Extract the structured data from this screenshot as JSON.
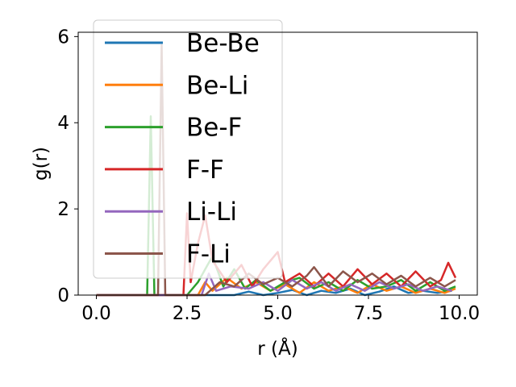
{
  "chart_data": {
    "type": "line",
    "xlabel": "r (Å)",
    "ylabel": "g(r)",
    "xlim": [
      -0.5,
      10.5
    ],
    "ylim": [
      0,
      6.1
    ],
    "xticks": [
      "0.0",
      "2.5",
      "5.0",
      "7.5",
      "10.0"
    ],
    "yticks": [
      "0",
      "2",
      "4",
      "6"
    ],
    "grid": false,
    "legend_position": "top-left",
    "series": [
      {
        "name": "Be-Be",
        "color": "#1f77b4",
        "points": [
          [
            0,
            0
          ],
          [
            3.8,
            0
          ],
          [
            4.2,
            0.08
          ],
          [
            4.6,
            0
          ],
          [
            5.0,
            0.05
          ],
          [
            5.4,
            0.12
          ],
          [
            5.8,
            0
          ],
          [
            6.2,
            0.1
          ],
          [
            6.6,
            0.05
          ],
          [
            7.0,
            0.15
          ],
          [
            7.4,
            0
          ],
          [
            7.8,
            0.08
          ],
          [
            8.2,
            0.2
          ],
          [
            8.6,
            0.05
          ],
          [
            9.0,
            0.1
          ],
          [
            9.4,
            0.05
          ],
          [
            9.8,
            0.1
          ]
        ]
      },
      {
        "name": "Be-Li",
        "color": "#ff7f0e",
        "points": [
          [
            0,
            0
          ],
          [
            2.8,
            0
          ],
          [
            3.0,
            0.3
          ],
          [
            3.2,
            0.1
          ],
          [
            3.6,
            0.4
          ],
          [
            4.0,
            0.15
          ],
          [
            4.4,
            0.3
          ],
          [
            4.8,
            0.1
          ],
          [
            5.2,
            0.25
          ],
          [
            5.6,
            0.05
          ],
          [
            6.0,
            0.3
          ],
          [
            6.4,
            0.1
          ],
          [
            6.8,
            0.2
          ],
          [
            7.2,
            0.05
          ],
          [
            7.6,
            0.25
          ],
          [
            8.0,
            0.1
          ],
          [
            8.4,
            0.2
          ],
          [
            8.8,
            0.05
          ],
          [
            9.2,
            0.15
          ],
          [
            9.6,
            0.05
          ],
          [
            9.9,
            0.15
          ]
        ]
      },
      {
        "name": "Be-F",
        "color": "#2ca02c",
        "points": [
          [
            0,
            0
          ],
          [
            1.4,
            0
          ],
          [
            1.5,
            4.15
          ],
          [
            1.6,
            0
          ],
          [
            2.5,
            0
          ],
          [
            2.8,
            0.3
          ],
          [
            3.2,
            0.9
          ],
          [
            3.5,
            0.2
          ],
          [
            3.8,
            0.6
          ],
          [
            4.1,
            0.15
          ],
          [
            4.4,
            0.35
          ],
          [
            4.8,
            0.1
          ],
          [
            5.2,
            0.3
          ],
          [
            5.6,
            0.4
          ],
          [
            6.0,
            0.15
          ],
          [
            6.4,
            0.3
          ],
          [
            6.8,
            0.1
          ],
          [
            7.2,
            0.35
          ],
          [
            7.6,
            0.15
          ],
          [
            8.0,
            0.2
          ],
          [
            8.4,
            0.35
          ],
          [
            8.8,
            0.1
          ],
          [
            9.2,
            0.3
          ],
          [
            9.6,
            0.1
          ],
          [
            9.9,
            0.2
          ]
        ]
      },
      {
        "name": "F-F",
        "color": "#d62728",
        "points": [
          [
            0,
            0
          ],
          [
            2.4,
            0
          ],
          [
            2.5,
            1.9
          ],
          [
            2.6,
            0.3
          ],
          [
            2.8,
            1.2
          ],
          [
            3.0,
            1.85
          ],
          [
            3.2,
            0.8
          ],
          [
            3.6,
            0.3
          ],
          [
            4.0,
            0.7
          ],
          [
            4.3,
            0.2
          ],
          [
            4.6,
            0.6
          ],
          [
            5.0,
            1.0
          ],
          [
            5.2,
            0.3
          ],
          [
            5.6,
            0.5
          ],
          [
            6.0,
            0.2
          ],
          [
            6.4,
            0.5
          ],
          [
            6.8,
            0.2
          ],
          [
            7.2,
            0.6
          ],
          [
            7.6,
            0.25
          ],
          [
            8.0,
            0.5
          ],
          [
            8.4,
            0.2
          ],
          [
            8.8,
            0.55
          ],
          [
            9.2,
            0.2
          ],
          [
            9.5,
            0.35
          ],
          [
            9.7,
            0.75
          ],
          [
            9.9,
            0.4
          ]
        ]
      },
      {
        "name": "Li-Li",
        "color": "#9467bd",
        "points": [
          [
            0,
            0
          ],
          [
            2.9,
            0
          ],
          [
            3.1,
            0.5
          ],
          [
            3.3,
            0.1
          ],
          [
            3.7,
            0.2
          ],
          [
            4.2,
            0.15
          ],
          [
            4.6,
            0.3
          ],
          [
            5.0,
            0.1
          ],
          [
            5.4,
            0.35
          ],
          [
            5.8,
            0.15
          ],
          [
            6.2,
            0.3
          ],
          [
            6.6,
            0.1
          ],
          [
            7.0,
            0.25
          ],
          [
            7.4,
            0.1
          ],
          [
            7.8,
            0.3
          ],
          [
            8.2,
            0.15
          ],
          [
            8.6,
            0.25
          ],
          [
            9.0,
            0.1
          ],
          [
            9.4,
            0.2
          ],
          [
            9.8,
            0.1
          ]
        ]
      },
      {
        "name": "F-Li",
        "color": "#8c564b",
        "points": [
          [
            0,
            0
          ],
          [
            1.7,
            0
          ],
          [
            1.8,
            5.8
          ],
          [
            1.9,
            0
          ],
          [
            3.0,
            0
          ],
          [
            3.4,
            0.3
          ],
          [
            3.8,
            0.2
          ],
          [
            4.2,
            0.5
          ],
          [
            4.6,
            0.25
          ],
          [
            5.0,
            0.4
          ],
          [
            5.4,
            0.2
          ],
          [
            5.8,
            0.45
          ],
          [
            6.0,
            0.65
          ],
          [
            6.4,
            0.2
          ],
          [
            6.8,
            0.55
          ],
          [
            7.2,
            0.3
          ],
          [
            7.6,
            0.5
          ],
          [
            8.0,
            0.25
          ],
          [
            8.4,
            0.45
          ],
          [
            8.8,
            0.2
          ],
          [
            9.2,
            0.4
          ],
          [
            9.6,
            0.2
          ],
          [
            9.9,
            0.35
          ]
        ]
      }
    ]
  }
}
